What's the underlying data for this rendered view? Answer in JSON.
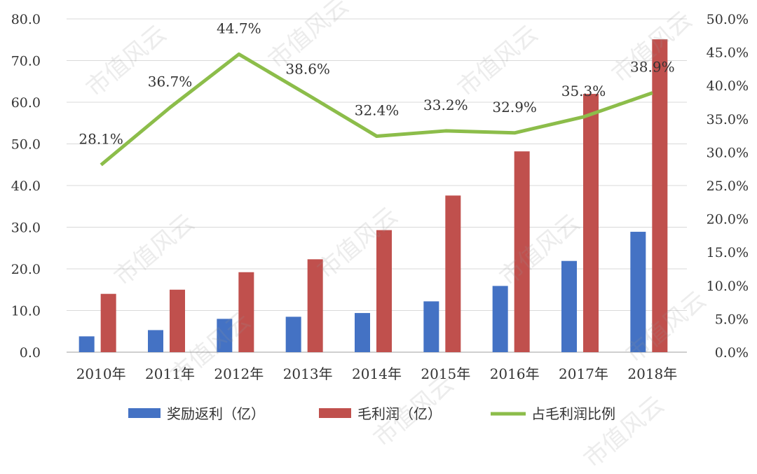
{
  "chart_data": {
    "type": "bar",
    "categories": [
      "2010年",
      "2011年",
      "2012年",
      "2013年",
      "2014年",
      "2015年",
      "2016年",
      "2017年",
      "2018年"
    ],
    "series": [
      {
        "name": "奖励返利（亿）",
        "type": "bar",
        "axis": "left",
        "color": "#4472c4",
        "values": [
          3.8,
          5.3,
          8.0,
          8.5,
          9.4,
          12.2,
          15.9,
          21.9,
          28.9
        ]
      },
      {
        "name": "毛利润（亿）",
        "type": "bar",
        "axis": "left",
        "color": "#c0504d",
        "values": [
          14.0,
          15.0,
          19.2,
          22.3,
          29.3,
          37.6,
          48.2,
          62.0,
          75.1
        ]
      },
      {
        "name": "占毛利润比例",
        "type": "line",
        "axis": "right",
        "color": "#8cbd4a",
        "values": [
          28.1,
          36.7,
          44.7,
          38.6,
          32.4,
          33.2,
          32.9,
          35.3,
          38.9
        ],
        "labels": [
          "28.1%",
          "36.7%",
          "44.7%",
          "38.6%",
          "32.4%",
          "33.2%",
          "32.9%",
          "35.3%",
          "38.9%"
        ]
      }
    ],
    "left_axis": {
      "ylim": [
        0,
        80
      ],
      "ticks": [
        "0.0",
        "10.0",
        "20.0",
        "30.0",
        "40.0",
        "50.0",
        "60.0",
        "70.0",
        "80.0"
      ]
    },
    "right_axis": {
      "ylim": [
        0,
        50
      ],
      "ticks": [
        "0.0%",
        "5.0%",
        "10.0%",
        "15.0%",
        "20.0%",
        "25.0%",
        "30.0%",
        "35.0%",
        "40.0%",
        "45.0%",
        "50.0%"
      ]
    },
    "grid": true,
    "legend_position": "bottom"
  },
  "watermark_text": "市值风云"
}
